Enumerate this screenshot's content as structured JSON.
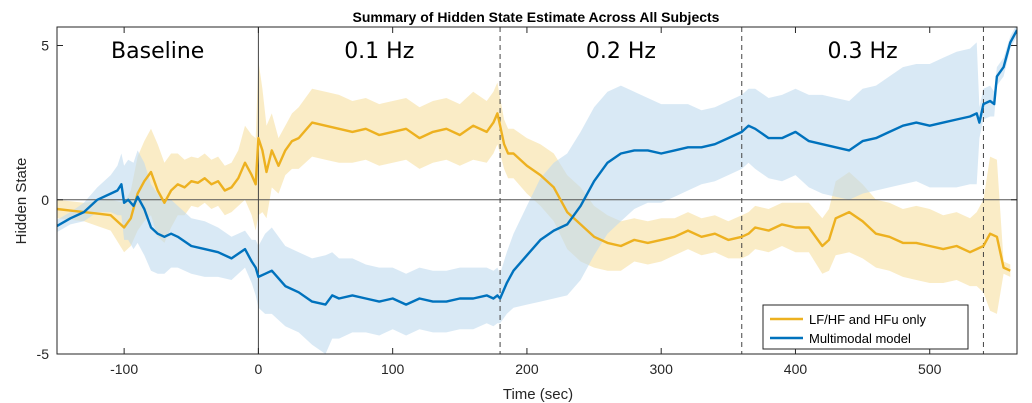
{
  "chart_data": {
    "type": "line",
    "title": "Summary of Hidden State Estimate Across All Subjects",
    "xlabel": "Time (sec)",
    "ylabel": "Hidden State",
    "xlim": [
      -150,
      565
    ],
    "ylim": [
      -5,
      5.6
    ],
    "x_ticks": [
      -100,
      0,
      100,
      200,
      300,
      400,
      500
    ],
    "y_ticks": [
      -5,
      0,
      5
    ],
    "grid": false,
    "zero_line": true,
    "legend_position": "bottom-right",
    "phases": [
      {
        "label": "Baseline",
        "x_start": -150,
        "x_end": 0,
        "boundary_style": "solid"
      },
      {
        "label": "0.1 Hz",
        "x_start": 0,
        "x_end": 180,
        "boundary_style": "dashed"
      },
      {
        "label": "0.2 Hz",
        "x_start": 180,
        "x_end": 360,
        "boundary_style": "dashed"
      },
      {
        "label": "0.3 Hz",
        "x_start": 360,
        "x_end": 540,
        "boundary_style": "solid"
      }
    ],
    "boundaries": [
      0,
      180,
      360,
      540
    ],
    "series": [
      {
        "name": "LF/HF and HFu only",
        "color": "#EDB120",
        "band_color": "#F7DFA0",
        "x": [
          -150,
          -140,
          -130,
          -120,
          -110,
          -100,
          -95,
          -90,
          -85,
          -80,
          -75,
          -70,
          -65,
          -60,
          -55,
          -50,
          -45,
          -40,
          -35,
          -30,
          -25,
          -20,
          -15,
          -10,
          -5,
          -2,
          0,
          3,
          6,
          10,
          15,
          20,
          25,
          30,
          40,
          50,
          60,
          70,
          80,
          90,
          100,
          110,
          120,
          130,
          140,
          150,
          160,
          170,
          175,
          178,
          180,
          183,
          186,
          190,
          200,
          210,
          220,
          230,
          240,
          250,
          260,
          270,
          280,
          290,
          300,
          310,
          320,
          330,
          340,
          350,
          360,
          365,
          370,
          380,
          390,
          400,
          410,
          420,
          425,
          430,
          440,
          450,
          460,
          470,
          480,
          490,
          500,
          510,
          520,
          530,
          535,
          540,
          545,
          550,
          555,
          560
        ],
        "y": [
          -0.3,
          -0.35,
          -0.4,
          -0.45,
          -0.5,
          -0.9,
          -0.6,
          0.2,
          0.6,
          0.9,
          0.3,
          -0.1,
          0.3,
          0.5,
          0.4,
          0.6,
          0.55,
          0.7,
          0.5,
          0.6,
          0.3,
          0.4,
          0.7,
          1.2,
          0.8,
          0.5,
          2.0,
          1.6,
          0.9,
          1.6,
          1.1,
          1.6,
          1.9,
          2.0,
          2.5,
          2.4,
          2.3,
          2.2,
          2.3,
          2.1,
          2.2,
          2.3,
          2.0,
          2.2,
          2.3,
          2.1,
          2.4,
          2.2,
          2.5,
          2.8,
          2.4,
          1.8,
          1.5,
          1.5,
          1.1,
          0.8,
          0.4,
          -0.4,
          -0.8,
          -1.2,
          -1.4,
          -1.5,
          -1.3,
          -1.4,
          -1.3,
          -1.2,
          -1.0,
          -1.2,
          -1.1,
          -1.3,
          -1.2,
          -1.1,
          -0.9,
          -1.0,
          -0.8,
          -0.9,
          -0.9,
          -1.5,
          -1.3,
          -0.6,
          -0.4,
          -0.7,
          -1.1,
          -1.2,
          -1.4,
          -1.4,
          -1.5,
          -1.6,
          -1.5,
          -1.7,
          -1.6,
          -1.5,
          -1.1,
          -1.2,
          -2.2,
          -2.3
        ],
        "band": [
          0.3,
          0.3,
          0.3,
          0.4,
          0.5,
          0.8,
          0.9,
          1.2,
          1.3,
          1.4,
          1.5,
          1.3,
          1.2,
          1.0,
          0.9,
          0.8,
          0.8,
          0.8,
          0.8,
          0.8,
          0.8,
          0.8,
          0.9,
          1.2,
          1.3,
          1.5,
          2.5,
          2.0,
          1.5,
          1.2,
          0.9,
          0.8,
          0.9,
          1.0,
          1.1,
          1.1,
          1.1,
          1.0,
          1.0,
          1.0,
          1.0,
          1.0,
          1.0,
          1.0,
          1.0,
          1.0,
          1.1,
          1.0,
          1.0,
          1.0,
          0.9,
          0.8,
          0.8,
          0.8,
          0.9,
          1.0,
          1.1,
          1.2,
          1.2,
          1.0,
          0.9,
          0.8,
          0.7,
          0.7,
          0.7,
          0.6,
          0.6,
          0.6,
          0.6,
          0.6,
          0.7,
          0.7,
          0.7,
          0.7,
          0.7,
          0.8,
          0.8,
          0.9,
          1.0,
          1.2,
          1.3,
          1.2,
          1.1,
          1.1,
          1.1,
          1.2,
          1.2,
          1.1,
          1.1,
          1.1,
          1.2,
          1.5,
          2.5,
          2.5,
          0.2,
          0.2
        ]
      },
      {
        "name": "Multimodal model",
        "color": "#0072BD",
        "band_color": "#BFDAEF",
        "x": [
          -150,
          -140,
          -130,
          -120,
          -110,
          -105,
          -102,
          -100,
          -97,
          -93,
          -90,
          -85,
          -80,
          -75,
          -70,
          -65,
          -60,
          -50,
          -40,
          -30,
          -20,
          -10,
          -5,
          -2,
          0,
          5,
          10,
          20,
          30,
          40,
          50,
          55,
          60,
          70,
          80,
          90,
          100,
          110,
          120,
          130,
          140,
          150,
          160,
          170,
          175,
          178,
          180,
          185,
          190,
          200,
          210,
          220,
          230,
          240,
          250,
          260,
          270,
          280,
          290,
          300,
          310,
          320,
          330,
          340,
          350,
          360,
          365,
          370,
          380,
          390,
          400,
          410,
          420,
          430,
          440,
          450,
          460,
          470,
          480,
          490,
          500,
          510,
          520,
          530,
          535,
          537,
          540,
          545,
          548,
          550,
          555,
          560,
          565
        ],
        "y": [
          -0.85,
          -0.6,
          -0.4,
          0.0,
          0.2,
          0.3,
          0.5,
          -0.1,
          0.0,
          -0.2,
          0.1,
          -0.3,
          -0.9,
          -1.1,
          -1.2,
          -1.1,
          -1.2,
          -1.5,
          -1.6,
          -1.7,
          -1.9,
          -1.6,
          -2.0,
          -2.2,
          -2.5,
          -2.4,
          -2.3,
          -2.8,
          -3.0,
          -3.3,
          -3.4,
          -3.1,
          -3.2,
          -3.1,
          -3.2,
          -3.3,
          -3.2,
          -3.4,
          -3.2,
          -3.3,
          -3.3,
          -3.2,
          -3.2,
          -3.1,
          -3.2,
          -3.1,
          -3.2,
          -2.7,
          -2.3,
          -1.8,
          -1.3,
          -1.0,
          -0.8,
          -0.2,
          0.6,
          1.2,
          1.5,
          1.6,
          1.6,
          1.5,
          1.6,
          1.7,
          1.7,
          1.8,
          2.0,
          2.2,
          2.4,
          2.3,
          2.0,
          2.0,
          2.2,
          1.9,
          1.8,
          1.7,
          1.6,
          1.9,
          2.0,
          2.2,
          2.4,
          2.5,
          2.4,
          2.5,
          2.6,
          2.7,
          2.8,
          2.5,
          3.1,
          3.2,
          3.1,
          4.0,
          4.3,
          5.1,
          5.5
        ],
        "band": [
          0.2,
          0.2,
          0.3,
          0.4,
          0.6,
          0.8,
          1.0,
          1.2,
          1.3,
          1.4,
          1.5,
          1.5,
          1.4,
          1.3,
          1.2,
          1.1,
          1.0,
          0.9,
          0.9,
          0.8,
          0.7,
          0.6,
          0.7,
          0.9,
          1.0,
          1.3,
          1.4,
          1.3,
          1.3,
          1.4,
          1.6,
          1.4,
          1.3,
          1.2,
          1.1,
          1.1,
          1.0,
          1.0,
          1.0,
          1.0,
          1.0,
          1.0,
          1.0,
          0.9,
          0.9,
          0.9,
          0.8,
          1.0,
          1.2,
          1.6,
          2.0,
          2.2,
          2.3,
          2.4,
          2.4,
          2.3,
          2.2,
          1.9,
          1.7,
          1.6,
          1.5,
          1.4,
          1.2,
          1.2,
          1.2,
          1.2,
          1.2,
          1.3,
          1.3,
          1.4,
          1.4,
          1.5,
          1.6,
          1.6,
          1.6,
          1.7,
          1.7,
          1.8,
          1.9,
          1.9,
          2.0,
          2.1,
          2.2,
          2.2,
          2.3,
          0.5,
          0.5,
          0.5,
          0.4,
          0.3,
          0.3,
          0.2,
          0.2
        ]
      }
    ],
    "legend": [
      {
        "label": "LF/HF and HFu only",
        "color": "#EDB120"
      },
      {
        "label": "Multimodal model",
        "color": "#0072BD"
      }
    ]
  }
}
